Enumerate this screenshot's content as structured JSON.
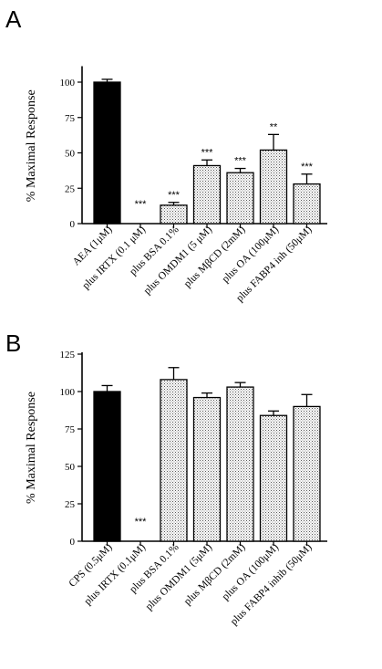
{
  "chart_data": [
    {
      "panel_label": "A",
      "type": "bar",
      "ylabel": "% Maximal Response",
      "xlabel": "",
      "ylim": [
        0,
        110
      ],
      "yticks": [
        0,
        25,
        50,
        75,
        100
      ],
      "categories": [
        "AEA (1μM)",
        "plus IRTX (0.1 μM)",
        "plus BSA 0.1%",
        "plus OMDM1 (5 μM)",
        "plus MβCD (2mM)",
        "plus OA (100μM)",
        "plus FABP4 inh (50μM)"
      ],
      "series": [
        {
          "values": [
            100,
            0,
            13,
            41,
            36,
            52,
            28
          ],
          "errors": [
            2,
            0,
            2,
            4,
            3,
            11,
            7
          ],
          "significance": [
            "",
            "***",
            "***",
            "***",
            "***",
            "**",
            "***"
          ]
        }
      ],
      "bar_styles": [
        "solid-black",
        "none",
        "dotted",
        "dotted",
        "dotted",
        "dotted",
        "dotted"
      ]
    },
    {
      "panel_label": "B",
      "type": "bar",
      "ylabel": "% Maximal Response",
      "xlabel": "",
      "ylim": [
        0,
        125
      ],
      "yticks": [
        0,
        25,
        50,
        75,
        100,
        125
      ],
      "categories": [
        "CPS (0.5μM)",
        "plus IRTX (0.1μM)",
        "plus BSA 0.1%",
        "plus OMDM1 (5μM)",
        "plus MβCD (2mM)",
        "plus OA (100μM)",
        "plus FABP4 inhib (50μM)"
      ],
      "series": [
        {
          "values": [
            100,
            0,
            108,
            96,
            103,
            84,
            90
          ],
          "errors": [
            4,
            0,
            8,
            3,
            3,
            3,
            8
          ],
          "significance": [
            "",
            "***",
            "",
            "",
            "",
            "",
            ""
          ]
        }
      ],
      "bar_styles": [
        "solid-black",
        "none",
        "dotted",
        "dotted",
        "dotted",
        "dotted",
        "dotted"
      ]
    }
  ]
}
